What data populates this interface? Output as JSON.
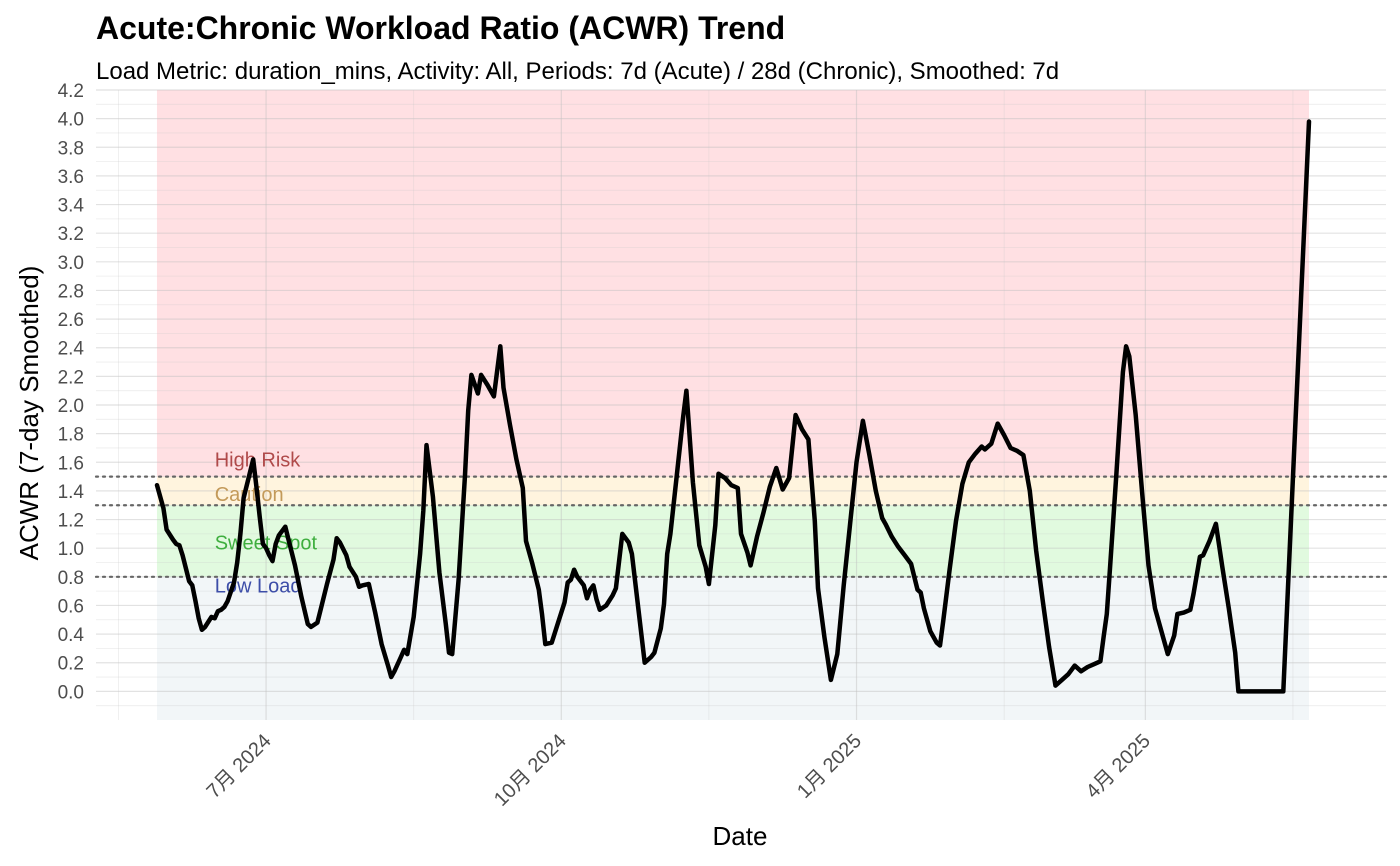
{
  "chart_data": {
    "type": "line",
    "title": "Acute:Chronic Workload Ratio (ACWR) Trend",
    "subtitle": "Load Metric: duration_mins, Activity: All, Periods: 7d (Acute) / 28d (Chronic), Smoothed: 7d",
    "xlabel": "Date",
    "ylabel": "ACWR (7-day Smoothed)",
    "ylim": [
      -0.2,
      4.2
    ],
    "yticks": [
      0.0,
      0.2,
      0.4,
      0.6,
      0.8,
      1.0,
      1.2,
      1.4,
      1.6,
      1.8,
      2.0,
      2.2,
      2.4,
      2.6,
      2.8,
      3.0,
      3.2,
      3.4,
      3.6,
      3.8,
      4.0,
      4.2
    ],
    "xlim": [
      "2024-05-09",
      "2025-06-15"
    ],
    "xticks": [
      {
        "date": "2024-07-01",
        "label": "7月 2024"
      },
      {
        "date": "2024-10-01",
        "label": "10月 2024"
      },
      {
        "date": "2025-01-01",
        "label": "1月 2025"
      },
      {
        "date": "2025-04-01",
        "label": "4月 2025"
      }
    ],
    "grid": true,
    "zones": [
      {
        "name": "Low Load",
        "from": -0.2,
        "to": 0.8,
        "fill": "#f2f6f8",
        "label_color": "#3d4ea8"
      },
      {
        "name": "Sweet Spot",
        "from": 0.8,
        "to": 1.3,
        "fill": "#e1fadf",
        "label_color": "#3fae3f"
      },
      {
        "name": "Caution",
        "from": 1.3,
        "to": 1.5,
        "fill": "#fff4de",
        "label_color": "#c39a5a"
      },
      {
        "name": "High Risk",
        "from": 1.5,
        "to": 4.2,
        "fill": "#ffe0e3",
        "label_color": "#b04a4a"
      }
    ],
    "thresholds": [
      0.8,
      1.3,
      1.5
    ],
    "zone_start_date": "2024-05-28",
    "zone_end_date": "2025-05-22",
    "label_date": "2024-06-15",
    "series": [
      {
        "color": "#000000",
        "points": [
          [
            "2024-05-28",
            1.44
          ],
          [
            "2024-05-30",
            1.28
          ],
          [
            "2024-05-31",
            1.13
          ],
          [
            "2024-06-02",
            1.06
          ],
          [
            "2024-06-03",
            1.03
          ],
          [
            "2024-06-04",
            1.02
          ],
          [
            "2024-06-05",
            0.95
          ],
          [
            "2024-06-07",
            0.77
          ],
          [
            "2024-06-08",
            0.74
          ],
          [
            "2024-06-09",
            0.63
          ],
          [
            "2024-06-10",
            0.51
          ],
          [
            "2024-06-11",
            0.43
          ],
          [
            "2024-06-12",
            0.45
          ],
          [
            "2024-06-14",
            0.52
          ],
          [
            "2024-06-15",
            0.51
          ],
          [
            "2024-06-16",
            0.56
          ],
          [
            "2024-06-17",
            0.57
          ],
          [
            "2024-06-18",
            0.59
          ],
          [
            "2024-06-19",
            0.63
          ],
          [
            "2024-06-21",
            0.76
          ],
          [
            "2024-06-22",
            0.9
          ],
          [
            "2024-06-23",
            1.1
          ],
          [
            "2024-06-24",
            1.35
          ],
          [
            "2024-06-26",
            1.53
          ],
          [
            "2024-06-27",
            1.62
          ],
          [
            "2024-06-28",
            1.43
          ],
          [
            "2024-06-29",
            1.22
          ],
          [
            "2024-06-30",
            1.03
          ],
          [
            "2024-07-01",
            1.0
          ],
          [
            "2024-07-02",
            0.95
          ],
          [
            "2024-07-03",
            0.91
          ],
          [
            "2024-07-04",
            1.03
          ],
          [
            "2024-07-05",
            1.09
          ],
          [
            "2024-07-07",
            1.15
          ],
          [
            "2024-07-08",
            1.06
          ],
          [
            "2024-07-10",
            0.88
          ],
          [
            "2024-07-12",
            0.66
          ],
          [
            "2024-07-14",
            0.47
          ],
          [
            "2024-07-15",
            0.45
          ],
          [
            "2024-07-17",
            0.48
          ],
          [
            "2024-07-18",
            0.57
          ],
          [
            "2024-07-20",
            0.75
          ],
          [
            "2024-07-22",
            0.92
          ],
          [
            "2024-07-23",
            1.07
          ],
          [
            "2024-07-24",
            1.04
          ],
          [
            "2024-07-26",
            0.95
          ],
          [
            "2024-07-27",
            0.87
          ],
          [
            "2024-07-29",
            0.8
          ],
          [
            "2024-07-30",
            0.73
          ],
          [
            "2024-07-31",
            0.74
          ],
          [
            "2024-08-02",
            0.75
          ],
          [
            "2024-08-04",
            0.55
          ],
          [
            "2024-08-06",
            0.33
          ],
          [
            "2024-08-08",
            0.18
          ],
          [
            "2024-08-09",
            0.1
          ],
          [
            "2024-08-10",
            0.14
          ],
          [
            "2024-08-12",
            0.24
          ],
          [
            "2024-08-13",
            0.29
          ],
          [
            "2024-08-14",
            0.26
          ],
          [
            "2024-08-16",
            0.52
          ],
          [
            "2024-08-18",
            0.96
          ],
          [
            "2024-08-19",
            1.26
          ],
          [
            "2024-08-20",
            1.72
          ],
          [
            "2024-08-22",
            1.36
          ],
          [
            "2024-08-24",
            0.83
          ],
          [
            "2024-08-26",
            0.47
          ],
          [
            "2024-08-27",
            0.27
          ],
          [
            "2024-08-28",
            0.26
          ],
          [
            "2024-08-30",
            0.78
          ],
          [
            "2024-09-01",
            1.51
          ],
          [
            "2024-09-02",
            1.96
          ],
          [
            "2024-09-03",
            2.21
          ],
          [
            "2024-09-05",
            2.08
          ],
          [
            "2024-09-06",
            2.21
          ],
          [
            "2024-09-08",
            2.14
          ],
          [
            "2024-09-10",
            2.06
          ],
          [
            "2024-09-12",
            2.41
          ],
          [
            "2024-09-13",
            2.12
          ],
          [
            "2024-09-15",
            1.86
          ],
          [
            "2024-09-17",
            1.62
          ],
          [
            "2024-09-19",
            1.42
          ],
          [
            "2024-09-20",
            1.05
          ],
          [
            "2024-09-22",
            0.89
          ],
          [
            "2024-09-24",
            0.71
          ],
          [
            "2024-09-25",
            0.54
          ],
          [
            "2024-09-26",
            0.33
          ],
          [
            "2024-09-28",
            0.34
          ],
          [
            "2024-09-30",
            0.48
          ],
          [
            "2024-10-02",
            0.62
          ],
          [
            "2024-10-03",
            0.76
          ],
          [
            "2024-10-04",
            0.78
          ],
          [
            "2024-10-05",
            0.85
          ],
          [
            "2024-10-06",
            0.8
          ],
          [
            "2024-10-08",
            0.74
          ],
          [
            "2024-10-09",
            0.65
          ],
          [
            "2024-10-10",
            0.71
          ],
          [
            "2024-10-11",
            0.74
          ],
          [
            "2024-10-12",
            0.64
          ],
          [
            "2024-10-13",
            0.57
          ],
          [
            "2024-10-15",
            0.6
          ],
          [
            "2024-10-17",
            0.67
          ],
          [
            "2024-10-18",
            0.72
          ],
          [
            "2024-10-20",
            1.1
          ],
          [
            "2024-10-22",
            1.04
          ],
          [
            "2024-10-23",
            0.96
          ],
          [
            "2024-10-25",
            0.58
          ],
          [
            "2024-10-27",
            0.2
          ],
          [
            "2024-10-29",
            0.24
          ],
          [
            "2024-10-30",
            0.27
          ],
          [
            "2024-11-01",
            0.44
          ],
          [
            "2024-11-02",
            0.61
          ],
          [
            "2024-11-03",
            0.96
          ],
          [
            "2024-11-04",
            1.1
          ],
          [
            "2024-11-06",
            1.51
          ],
          [
            "2024-11-08",
            1.92
          ],
          [
            "2024-11-09",
            2.1
          ],
          [
            "2024-11-11",
            1.46
          ],
          [
            "2024-11-13",
            1.02
          ],
          [
            "2024-11-15",
            0.87
          ],
          [
            "2024-11-16",
            0.75
          ],
          [
            "2024-11-18",
            1.16
          ],
          [
            "2024-11-19",
            1.52
          ],
          [
            "2024-11-21",
            1.49
          ],
          [
            "2024-11-23",
            1.44
          ],
          [
            "2024-11-25",
            1.42
          ],
          [
            "2024-11-26",
            1.1
          ],
          [
            "2024-11-28",
            0.97
          ],
          [
            "2024-11-29",
            0.88
          ],
          [
            "2024-12-01",
            1.08
          ],
          [
            "2024-12-03",
            1.25
          ],
          [
            "2024-12-05",
            1.43
          ],
          [
            "2024-12-07",
            1.56
          ],
          [
            "2024-12-09",
            1.41
          ],
          [
            "2024-12-11",
            1.49
          ],
          [
            "2024-12-13",
            1.93
          ],
          [
            "2024-12-15",
            1.83
          ],
          [
            "2024-12-17",
            1.76
          ],
          [
            "2024-12-19",
            1.19
          ],
          [
            "2024-12-20",
            0.72
          ],
          [
            "2024-12-22",
            0.38
          ],
          [
            "2024-12-24",
            0.08
          ],
          [
            "2024-12-26",
            0.26
          ],
          [
            "2024-12-28",
            0.74
          ],
          [
            "2024-12-30",
            1.17
          ],
          [
            "2025-01-01",
            1.6
          ],
          [
            "2025-01-03",
            1.89
          ],
          [
            "2025-01-05",
            1.65
          ],
          [
            "2025-01-07",
            1.4
          ],
          [
            "2025-01-09",
            1.21
          ],
          [
            "2025-01-10",
            1.17
          ],
          [
            "2025-01-12",
            1.08
          ],
          [
            "2025-01-14",
            1.01
          ],
          [
            "2025-01-16",
            0.95
          ],
          [
            "2025-01-18",
            0.89
          ],
          [
            "2025-01-20",
            0.71
          ],
          [
            "2025-01-21",
            0.69
          ],
          [
            "2025-01-22",
            0.58
          ],
          [
            "2025-01-24",
            0.42
          ],
          [
            "2025-01-26",
            0.34
          ],
          [
            "2025-01-27",
            0.32
          ],
          [
            "2025-01-28",
            0.49
          ],
          [
            "2025-01-30",
            0.85
          ],
          [
            "2025-02-01",
            1.19
          ],
          [
            "2025-02-03",
            1.45
          ],
          [
            "2025-02-05",
            1.6
          ],
          [
            "2025-02-07",
            1.66
          ],
          [
            "2025-02-09",
            1.71
          ],
          [
            "2025-02-10",
            1.69
          ],
          [
            "2025-02-12",
            1.73
          ],
          [
            "2025-02-14",
            1.87
          ],
          [
            "2025-02-16",
            1.79
          ],
          [
            "2025-02-18",
            1.7
          ],
          [
            "2025-02-20",
            1.68
          ],
          [
            "2025-02-22",
            1.65
          ],
          [
            "2025-02-24",
            1.4
          ],
          [
            "2025-02-26",
            0.98
          ],
          [
            "2025-02-28",
            0.64
          ],
          [
            "2025-03-02",
            0.31
          ],
          [
            "2025-03-04",
            0.04
          ],
          [
            "2025-03-06",
            0.08
          ],
          [
            "2025-03-08",
            0.12
          ],
          [
            "2025-03-10",
            0.18
          ],
          [
            "2025-03-12",
            0.14
          ],
          [
            "2025-03-14",
            0.17
          ],
          [
            "2025-03-16",
            0.19
          ],
          [
            "2025-03-18",
            0.21
          ],
          [
            "2025-03-19",
            0.38
          ],
          [
            "2025-03-20",
            0.54
          ],
          [
            "2025-03-21",
            0.86
          ],
          [
            "2025-03-23",
            1.52
          ],
          [
            "2025-03-25",
            2.23
          ],
          [
            "2025-03-26",
            2.41
          ],
          [
            "2025-03-27",
            2.34
          ],
          [
            "2025-03-29",
            1.93
          ],
          [
            "2025-03-31",
            1.39
          ],
          [
            "2025-04-02",
            0.88
          ],
          [
            "2025-04-04",
            0.58
          ],
          [
            "2025-04-06",
            0.42
          ],
          [
            "2025-04-08",
            0.26
          ],
          [
            "2025-04-10",
            0.39
          ],
          [
            "2025-04-11",
            0.54
          ],
          [
            "2025-04-13",
            0.55
          ],
          [
            "2025-04-15",
            0.57
          ],
          [
            "2025-04-16",
            0.68
          ],
          [
            "2025-04-18",
            0.94
          ],
          [
            "2025-04-19",
            0.95
          ],
          [
            "2025-04-21",
            1.05
          ],
          [
            "2025-04-23",
            1.17
          ],
          [
            "2025-04-25",
            0.87
          ],
          [
            "2025-04-27",
            0.58
          ],
          [
            "2025-04-29",
            0.27
          ],
          [
            "2025-04-30",
            0.0
          ],
          [
            "2025-05-02",
            0.0
          ],
          [
            "2025-05-14",
            0.0
          ],
          [
            "2025-05-22",
            3.98
          ]
        ]
      }
    ]
  }
}
